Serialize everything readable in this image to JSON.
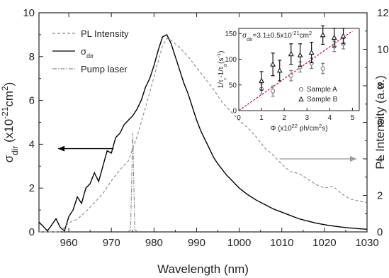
{
  "chart_data": [
    {
      "type": "line",
      "xlabel": "Wavelength (nm)",
      "ylabel_left": "σdir (x10⁻²¹cm²)",
      "ylabel_right": "PL Intensity (a.u.)",
      "xlim": [
        953,
        1030
      ],
      "ylim_left": [
        0,
        10
      ],
      "ylim_right": [
        0,
        12
      ],
      "xticks": [
        960,
        970,
        980,
        990,
        1000,
        1010,
        1020,
        1030
      ],
      "yticks_left": [
        0,
        2,
        4,
        6,
        8,
        10
      ],
      "yticks_right": [
        0,
        2,
        4,
        6,
        8,
        10,
        12
      ],
      "legend": {
        "placement": "top-left",
        "entries": [
          "PL Intensity",
          "σdir",
          "Pump laser"
        ]
      },
      "series": [
        {
          "name": "σdir",
          "axis": "left",
          "style": "solid",
          "color": "#000000",
          "x": [
            953,
            955,
            957,
            958,
            959,
            960,
            961,
            962,
            963,
            964,
            965,
            966,
            967,
            968,
            969,
            970,
            971,
            972,
            973,
            974,
            975,
            976,
            977,
            978,
            979,
            980,
            981,
            982,
            983,
            984,
            985,
            986,
            987,
            988,
            989,
            990,
            991,
            992,
            993,
            994,
            995,
            996,
            997,
            998,
            999,
            1000,
            1002,
            1004,
            1006,
            1008,
            1010,
            1012,
            1014,
            1016,
            1018,
            1020,
            1022,
            1024,
            1026,
            1028,
            1030
          ],
          "y": [
            0.45,
            0.05,
            0.6,
            0.2,
            0.05,
            0.7,
            1.0,
            1.6,
            1.3,
            2.0,
            2.2,
            2.7,
            2.3,
            3.0,
            3.7,
            3.6,
            4.3,
            4.5,
            4.9,
            5.1,
            5.3,
            5.6,
            6.0,
            6.6,
            7.0,
            7.6,
            8.3,
            8.9,
            9.0,
            8.6,
            8.0,
            7.4,
            6.8,
            6.3,
            5.7,
            5.1,
            4.6,
            4.2,
            3.8,
            3.4,
            3.1,
            2.85,
            2.6,
            2.4,
            2.2,
            2.0,
            1.7,
            1.45,
            1.25,
            1.05,
            0.9,
            0.75,
            0.6,
            0.5,
            0.4,
            0.33,
            0.27,
            0.22,
            0.18,
            0.15,
            0.12
          ]
        },
        {
          "name": "PL Intensity",
          "axis": "right",
          "style": "dashed",
          "color": "#888888",
          "x": [
            953,
            958,
            960,
            962,
            964,
            966,
            968,
            970,
            972,
            974,
            976,
            978,
            980,
            982,
            983,
            984,
            986,
            988,
            990,
            992,
            994,
            996,
            998,
            1000,
            1002,
            1004,
            1006,
            1008,
            1010,
            1012,
            1014,
            1016,
            1018,
            1020,
            1022,
            1024,
            1026,
            1028,
            1030
          ],
          "y": [
            0.0,
            0.0,
            0.5,
            0.7,
            1.1,
            1.6,
            2.1,
            2.8,
            3.4,
            3.9,
            5.2,
            6.8,
            8.5,
            10.2,
            10.6,
            10.5,
            10.1,
            9.6,
            9.0,
            8.4,
            7.8,
            7.1,
            6.6,
            6.1,
            5.7,
            5.2,
            4.6,
            4.2,
            3.7,
            3.3,
            3.2,
            2.9,
            2.6,
            2.4,
            2.5,
            2.1,
            1.8,
            1.7,
            1.6
          ]
        },
        {
          "name": "Pump laser",
          "axis": "left",
          "style": "dash-dot",
          "color": "#888888",
          "x": [
            973.8,
            974.5,
            975.0,
            975.5,
            976.2
          ],
          "y": [
            0.0,
            0.1,
            4.5,
            0.1,
            0.0
          ]
        }
      ],
      "annotations": {
        "left_arrow_points_to": "left axis",
        "right_arrow_points_to": "right axis"
      }
    },
    {
      "type": "scatter",
      "xlabel": "Φ (x10²² ph/cm²s)",
      "ylabel": "1/τr-1/τo(s⁻¹)",
      "xlim": [
        0,
        5.3
      ],
      "ylim": [
        0,
        160
      ],
      "xticks": [
        0,
        1,
        2,
        3,
        4,
        5
      ],
      "yticks": [
        0,
        50,
        100,
        150
      ],
      "fit_line": {
        "style": "dashed",
        "color": "#cc0044",
        "x": [
          0,
          5
        ],
        "y": [
          0,
          155
        ]
      },
      "annotation_text": "σdir=3.1±0.5x10⁻²¹cm²",
      "legend": {
        "placement": "bottom-right",
        "entries": [
          "Sample A",
          "Sample B"
        ]
      },
      "series": [
        {
          "name": "Sample A",
          "marker": "circle",
          "x": [
            1.0,
            1.5,
            2.3,
            2.7,
            3.2,
            3.7,
            4.2,
            4.6
          ],
          "y": [
            42,
            38,
            68,
            85,
            92,
            82,
            125,
            130
          ],
          "err": [
            10,
            10,
            10,
            10,
            10,
            10,
            10,
            10
          ]
        },
        {
          "name": "Sample B",
          "marker": "triangle",
          "x": [
            1.0,
            1.5,
            1.8,
            2.3,
            2.7,
            3.2,
            3.7,
            4.2,
            4.6
          ],
          "y": [
            58,
            90,
            78,
            110,
            108,
            113,
            147,
            142,
            145
          ],
          "err": [
            18,
            22,
            20,
            20,
            22,
            20,
            18,
            18,
            15
          ]
        }
      ]
    }
  ]
}
